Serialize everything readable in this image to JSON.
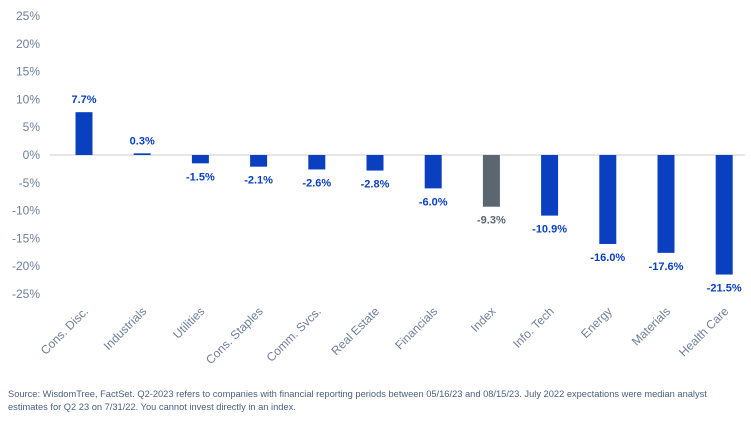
{
  "chart_data": {
    "type": "bar",
    "categories": [
      "Cons. Disc.",
      "Industrials",
      "Utilities",
      "Cons. Staples",
      "Comm. Svcs.",
      "Real Estate",
      "Financials",
      "Index",
      "Info. Tech",
      "Energy",
      "Materials",
      "Health Care"
    ],
    "values": [
      7.7,
      0.3,
      -1.5,
      -2.1,
      -2.6,
      -2.8,
      -6.0,
      -9.3,
      -10.9,
      -16.0,
      -17.6,
      -21.5
    ],
    "data_labels": [
      "7.7%",
      "0.3%",
      "-1.5%",
      "-2.1%",
      "-2.6%",
      "-2.8%",
      "-6.0%",
      "-9.3%",
      "-10.9%",
      "-16.0%",
      "-17.6%",
      "-21.5%"
    ],
    "highlight_category": "Index",
    "ylim": [
      -25,
      25
    ],
    "yticks": [
      25,
      20,
      15,
      10,
      5,
      0,
      -5,
      -10,
      -15,
      -20,
      -25
    ],
    "ytick_labels": [
      "25%",
      "20%",
      "15%",
      "10%",
      "5%",
      "0%",
      "-5%",
      "-10%",
      "-15%",
      "-20%",
      "-25%"
    ],
    "grid": false,
    "legend": "none",
    "colors": {
      "bar": "#0a3fc0",
      "highlight": "#5c6670",
      "axis_text": "#6e7f99",
      "zero_line": "#cccccc"
    }
  },
  "source_note": "Source: WisdomTree, FactSet. Q2-2023 refers to companies with financial reporting periods between 05/16/23 and 08/15/23. July 2022 expectations were median analyst estimates for Q2 23 on 7/31/22. You cannot invest directly in an index."
}
